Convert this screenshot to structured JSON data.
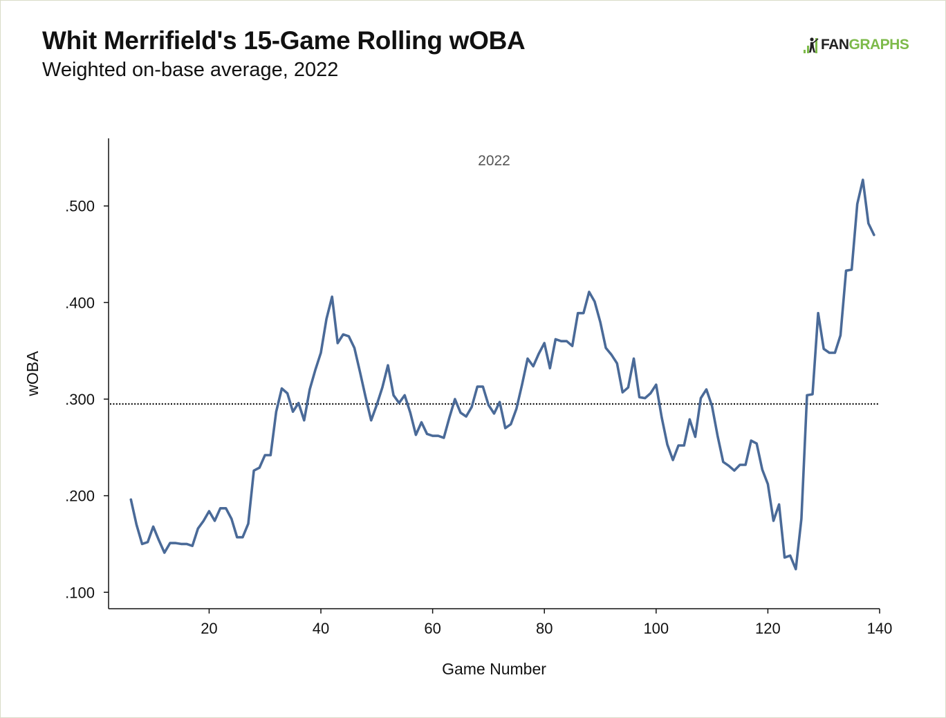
{
  "brand": {
    "logo_fan": "FAN",
    "logo_graphs": "GRAPHS",
    "fan_color": "#222222",
    "graphs_color": "#7dba4a"
  },
  "chart_data": {
    "type": "line",
    "title": "Whit Merrifield's 15-Game Rolling wOBA",
    "subtitle": "Weighted on-base average, 2022",
    "xlabel": "Game Number",
    "ylabel": "wOBA",
    "annotation": "2022",
    "xlim": [
      2,
      140
    ],
    "ylim": [
      0.083,
      0.57
    ],
    "xticks": [
      20,
      40,
      60,
      80,
      100,
      120,
      140
    ],
    "xtick_labels": [
      "20",
      "40",
      "60",
      "80",
      "100",
      "120",
      "140"
    ],
    "yticks": [
      0.1,
      0.2,
      0.3,
      0.4,
      0.5
    ],
    "ytick_labels": [
      ".100",
      ".200",
      ".300",
      ".400",
      ".500"
    ],
    "reference_line": {
      "y": 0.295,
      "style": "dotted"
    },
    "line_color": "#4a6a98",
    "grid": false,
    "series": [
      {
        "x": [
          6,
          7,
          8,
          9,
          10,
          11,
          12,
          13,
          14,
          15,
          16,
          17,
          18,
          19,
          20,
          21,
          22,
          23,
          24,
          25,
          26,
          27,
          28,
          29,
          30,
          31,
          32,
          33,
          34,
          35,
          36,
          37,
          38,
          39,
          40,
          41,
          42,
          43,
          44,
          45,
          46,
          47,
          48,
          49,
          50,
          51,
          52,
          53,
          54,
          55,
          56,
          57,
          58,
          59,
          60,
          61,
          62,
          63,
          64,
          65,
          66,
          67,
          68,
          69,
          70,
          71,
          72,
          73,
          74,
          75,
          76,
          77,
          78,
          79,
          80,
          81,
          82,
          83,
          84,
          85,
          86,
          87,
          88,
          89,
          90,
          91,
          92,
          93,
          94,
          95,
          96,
          97,
          98,
          99,
          100,
          101,
          102,
          103,
          104,
          105,
          106,
          107,
          108,
          109,
          110,
          111,
          112,
          113,
          114,
          115,
          116,
          117,
          118,
          119,
          120,
          121,
          122,
          123,
          124,
          125,
          126,
          127,
          128,
          129,
          130,
          131,
          132,
          133,
          134,
          135,
          136,
          137,
          138,
          139
        ],
        "values": [
          0.196,
          0.17,
          0.15,
          0.152,
          0.168,
          0.154,
          0.141,
          0.151,
          0.151,
          0.15,
          0.15,
          0.148,
          0.166,
          0.174,
          0.184,
          0.174,
          0.187,
          0.187,
          0.176,
          0.157,
          0.157,
          0.171,
          0.226,
          0.229,
          0.242,
          0.242,
          0.287,
          0.311,
          0.306,
          0.287,
          0.296,
          0.278,
          0.31,
          0.33,
          0.348,
          0.383,
          0.406,
          0.358,
          0.367,
          0.365,
          0.353,
          0.328,
          0.302,
          0.278,
          0.294,
          0.312,
          0.335,
          0.304,
          0.296,
          0.304,
          0.286,
          0.263,
          0.276,
          0.264,
          0.262,
          0.262,
          0.26,
          0.281,
          0.3,
          0.286,
          0.282,
          0.292,
          0.313,
          0.313,
          0.294,
          0.285,
          0.297,
          0.27,
          0.274,
          0.29,
          0.315,
          0.342,
          0.334,
          0.347,
          0.358,
          0.332,
          0.362,
          0.36,
          0.36,
          0.355,
          0.389,
          0.389,
          0.411,
          0.401,
          0.38,
          0.353,
          0.346,
          0.337,
          0.307,
          0.312,
          0.342,
          0.302,
          0.301,
          0.306,
          0.315,
          0.281,
          0.253,
          0.237,
          0.252,
          0.252,
          0.279,
          0.261,
          0.301,
          0.31,
          0.293,
          0.262,
          0.235,
          0.231,
          0.226,
          0.232,
          0.232,
          0.257,
          0.254,
          0.227,
          0.212,
          0.174,
          0.191,
          0.136,
          0.138,
          0.124,
          0.176,
          0.304,
          0.305,
          0.389,
          0.352,
          0.348,
          0.348,
          0.366,
          0.433,
          0.434,
          0.502,
          0.527,
          0.482,
          0.47
        ]
      }
    ]
  }
}
